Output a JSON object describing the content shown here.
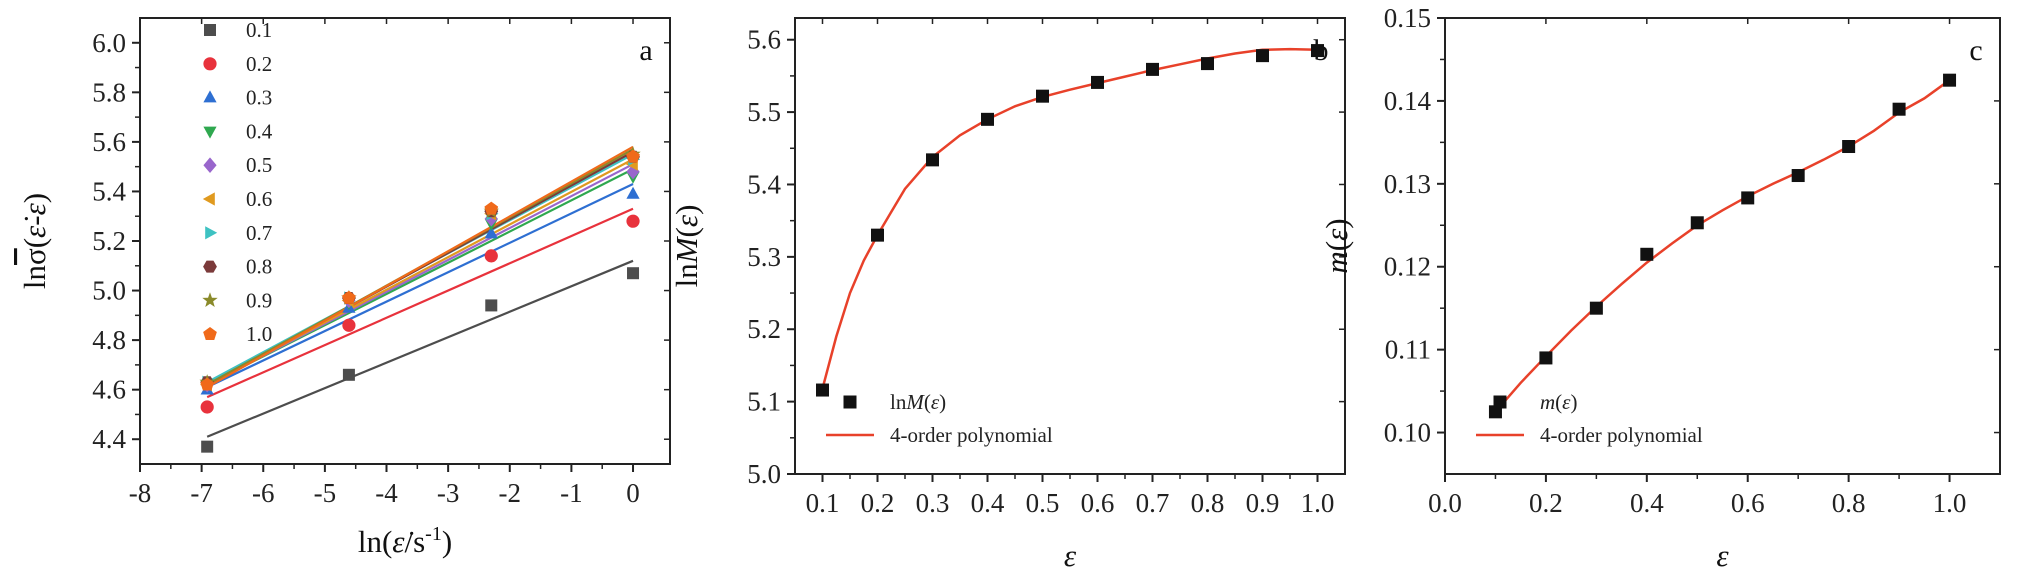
{
  "chart_data": [
    {
      "panel": "a",
      "type": "scatter",
      "panel_letter": "a",
      "xlabel": "ln(ε̇/s⁻¹)",
      "ylabel": "lnσ̄(ε̇-ε)",
      "xlim": [
        -8,
        0.6
      ],
      "ylim": [
        4.3,
        6.1
      ],
      "x_ticks": [
        -8,
        -7,
        -6,
        -5,
        -4,
        -3,
        -2,
        -1,
        0
      ],
      "y_ticks": [
        4.4,
        4.6,
        4.8,
        5.0,
        5.2,
        5.4,
        5.6,
        5.8,
        6.0
      ],
      "x_tick_labels": [
        "-8",
        "-7",
        "-6",
        "-5",
        "-4",
        "-3",
        "-2",
        "-1",
        "0"
      ],
      "y_tick_labels": [
        "4.4",
        "4.6",
        "4.8",
        "5.0",
        "5.2",
        "5.4",
        "5.6",
        "5.8",
        "6.0"
      ],
      "x": [
        -6.91,
        -4.61,
        -2.3,
        0
      ],
      "legend_position": "top-left",
      "series": [
        {
          "name": "0.1",
          "color": "#4d4d4d",
          "marker": "square",
          "values": [
            4.37,
            4.66,
            4.94,
            5.07
          ],
          "fit": [
            4.41,
            5.12
          ]
        },
        {
          "name": "0.2",
          "color": "#e8323c",
          "marker": "circle",
          "values": [
            4.53,
            4.86,
            5.14,
            5.28
          ],
          "fit": [
            4.57,
            5.33
          ]
        },
        {
          "name": "0.3",
          "color": "#2e6fd2",
          "marker": "triangle",
          "values": [
            4.6,
            4.93,
            5.23,
            5.39
          ],
          "fit": [
            4.61,
            5.43
          ]
        },
        {
          "name": "0.4",
          "color": "#2fa84f",
          "marker": "tri-down",
          "values": [
            4.62,
            4.95,
            5.27,
            5.46
          ],
          "fit": [
            4.62,
            5.49
          ]
        },
        {
          "name": "0.5",
          "color": "#9966cc",
          "marker": "diamond",
          "values": [
            4.62,
            4.96,
            5.29,
            5.48
          ],
          "fit": [
            4.62,
            5.51
          ]
        },
        {
          "name": "0.6",
          "color": "#e09a1f",
          "marker": "tri-left",
          "values": [
            4.62,
            4.96,
            5.31,
            5.51
          ],
          "fit": [
            4.62,
            5.53
          ]
        },
        {
          "name": "0.7",
          "color": "#3ec2c2",
          "marker": "tri-right",
          "values": [
            4.63,
            4.97,
            5.31,
            5.53
          ],
          "fit": [
            4.63,
            5.55
          ]
        },
        {
          "name": "0.8",
          "color": "#7b3a3a",
          "marker": "hexagon",
          "values": [
            4.63,
            4.97,
            5.32,
            5.54
          ],
          "fit": [
            4.62,
            5.56
          ]
        },
        {
          "name": "0.9",
          "color": "#8a8a2a",
          "marker": "star",
          "values": [
            4.63,
            4.97,
            5.32,
            5.55
          ],
          "fit": [
            4.62,
            5.57
          ]
        },
        {
          "name": "1.0",
          "color": "#f06a1a",
          "marker": "pentagon",
          "values": [
            4.62,
            4.97,
            5.33,
            5.54
          ],
          "fit": [
            4.61,
            5.58
          ]
        }
      ]
    },
    {
      "panel": "b",
      "type": "scatter",
      "panel_letter": "b",
      "xlabel": "ε",
      "ylabel": "lnM(ε)",
      "xlim": [
        0.05,
        1.05
      ],
      "ylim": [
        5.0,
        5.63
      ],
      "x_ticks": [
        0.1,
        0.2,
        0.3,
        0.4,
        0.5,
        0.6,
        0.7,
        0.8,
        0.9,
        1.0
      ],
      "y_ticks": [
        5.0,
        5.1,
        5.2,
        5.3,
        5.4,
        5.5,
        5.6
      ],
      "x_tick_labels": [
        "0.1",
        "0.2",
        "0.3",
        "0.4",
        "0.5",
        "0.6",
        "0.7",
        "0.8",
        "0.9",
        "1.0"
      ],
      "y_tick_labels": [
        "5.0",
        "5.1",
        "5.2",
        "5.3",
        "5.4",
        "5.5",
        "5.6"
      ],
      "x": [
        0.1,
        0.2,
        0.3,
        0.4,
        0.5,
        0.6,
        0.7,
        0.8,
        0.9,
        1.0
      ],
      "values": [
        5.116,
        5.33,
        5.434,
        5.49,
        5.522,
        5.541,
        5.559,
        5.567,
        5.578,
        5.585
      ],
      "fit_x": [
        0.1,
        0.125,
        0.15,
        0.175,
        0.2,
        0.25,
        0.3,
        0.35,
        0.4,
        0.45,
        0.5,
        0.55,
        0.6,
        0.65,
        0.7,
        0.75,
        0.8,
        0.85,
        0.9,
        0.95,
        1.0
      ],
      "fit_y": [
        5.118,
        5.19,
        5.25,
        5.295,
        5.33,
        5.394,
        5.438,
        5.468,
        5.49,
        5.508,
        5.521,
        5.531,
        5.54,
        5.549,
        5.558,
        5.566,
        5.574,
        5.581,
        5.586,
        5.587,
        5.586
      ],
      "marker_color": "#111111",
      "fit_color": "#e8412a",
      "legend": [
        "lnM(ε)",
        "4-order polynomial"
      ],
      "legend_position": "bottom-left"
    },
    {
      "panel": "c",
      "type": "scatter",
      "panel_letter": "c",
      "xlabel": "ε",
      "ylabel": "m(ε)",
      "xlim": [
        0.0,
        1.1
      ],
      "ylim": [
        0.095,
        0.15
      ],
      "x_ticks": [
        0.0,
        0.2,
        0.4,
        0.6,
        0.8,
        1.0
      ],
      "y_ticks": [
        0.1,
        0.11,
        0.12,
        0.13,
        0.14,
        0.15
      ],
      "x_tick_labels": [
        "0.0",
        "0.2",
        "0.4",
        "0.6",
        "0.8",
        "1.0"
      ],
      "y_tick_labels": [
        "0.10",
        "0.11",
        "0.12",
        "0.13",
        "0.14",
        "0.15"
      ],
      "x": [
        0.1,
        0.2,
        0.3,
        0.4,
        0.5,
        0.6,
        0.7,
        0.8,
        0.9,
        1.0
      ],
      "values": [
        0.1025,
        0.109,
        0.115,
        0.1215,
        0.1253,
        0.1283,
        0.131,
        0.1345,
        0.139,
        0.1425
      ],
      "fit_x": [
        0.1,
        0.15,
        0.2,
        0.25,
        0.3,
        0.35,
        0.4,
        0.45,
        0.5,
        0.55,
        0.6,
        0.65,
        0.7,
        0.75,
        0.8,
        0.85,
        0.9,
        0.95,
        1.0
      ],
      "fit_y": [
        0.1025,
        0.106,
        0.1092,
        0.1123,
        0.1152,
        0.1179,
        0.1205,
        0.1228,
        0.125,
        0.1268,
        0.1285,
        0.13,
        0.1314,
        0.1329,
        0.1345,
        0.1364,
        0.1386,
        0.1403,
        0.1425
      ],
      "marker_color": "#111111",
      "fit_color": "#e8412a",
      "legend": [
        "m(ε)",
        "4-order polynomial"
      ],
      "legend_position": "bottom-left"
    }
  ]
}
